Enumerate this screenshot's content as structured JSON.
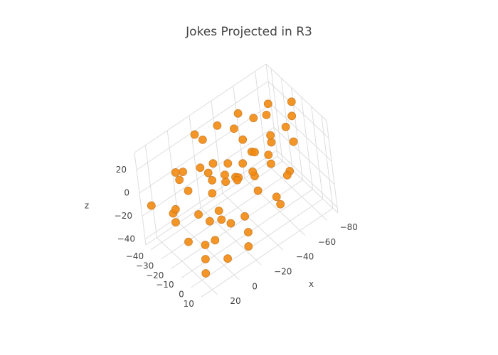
{
  "chart_data": {
    "type": "scatter3d",
    "title": "Jokes Projected in R3",
    "xaxis_title": "x",
    "zaxis_title": "z",
    "xlim": [
      -90,
      30
    ],
    "ylim": [
      -45,
      15
    ],
    "zlim": [
      -45,
      35
    ],
    "xticks": [
      {
        "value": -80,
        "label": "−80"
      },
      {
        "value": -60,
        "label": "−60"
      },
      {
        "value": -40,
        "label": "−40"
      },
      {
        "value": -20,
        "label": "−20"
      },
      0,
      20
    ],
    "yticks": [
      {
        "value": -40,
        "label": "−40"
      },
      {
        "value": -30,
        "label": "−30"
      },
      {
        "value": -20,
        "label": "−20"
      },
      {
        "value": -10,
        "label": "−10"
      },
      0,
      10
    ],
    "zticks": [
      {
        "value": -40,
        "label": "−40"
      },
      {
        "value": -20,
        "label": "−20"
      },
      0,
      20
    ],
    "grid": true,
    "series": [
      {
        "color": "#f28a10",
        "x": [
          -30,
          -20,
          -40,
          -50,
          -10,
          0,
          -60,
          -70,
          -80,
          -75,
          -85,
          -65,
          -45,
          -35,
          -25,
          -15,
          -5,
          5,
          10,
          15,
          20,
          0,
          -10,
          -20,
          -30,
          -40,
          -55,
          -60,
          -70,
          -50,
          -35,
          -25,
          -15,
          -5,
          5,
          10,
          15,
          20,
          25,
          -45,
          -55,
          -65,
          -75,
          -80,
          -20,
          -30,
          -10,
          0,
          -40,
          -50,
          5,
          -15,
          -25,
          -35,
          -60,
          10,
          -5,
          -70,
          -85,
          20
        ],
        "y": [
          -15,
          -25,
          -5,
          -20,
          -10,
          -30,
          -10,
          -25,
          -10,
          -5,
          -15,
          0,
          -30,
          -35,
          -40,
          -35,
          -20,
          -15,
          -5,
          0,
          -10,
          5,
          0,
          5,
          -10,
          -25,
          -35,
          -30,
          -40,
          5,
          0,
          -20,
          -25,
          -40,
          -35,
          -25,
          -30,
          -20,
          -40,
          -15,
          -5,
          -20,
          -30,
          -35,
          -30,
          -5,
          -15,
          -10,
          -40,
          -30,
          0,
          10,
          -15,
          -20,
          -15,
          -35,
          -5,
          -10,
          -25,
          5
        ],
        "z": [
          0,
          10,
          -10,
          5,
          -20,
          -5,
          15,
          20,
          25,
          10,
          30,
          -5,
          20,
          25,
          15,
          30,
          20,
          -10,
          -25,
          -30,
          -20,
          -35,
          -15,
          -25,
          -30,
          -15,
          0,
          -10,
          5,
          -20,
          10,
          -5,
          5,
          0,
          10,
          15,
          -15,
          0,
          -10,
          -5,
          -25,
          -15,
          -5,
          15,
          -20,
          20,
          10,
          -15,
          -25,
          30,
          -20,
          -30,
          15,
          -10,
          0,
          -30,
          -5,
          -20,
          0,
          -35
        ]
      }
    ]
  }
}
